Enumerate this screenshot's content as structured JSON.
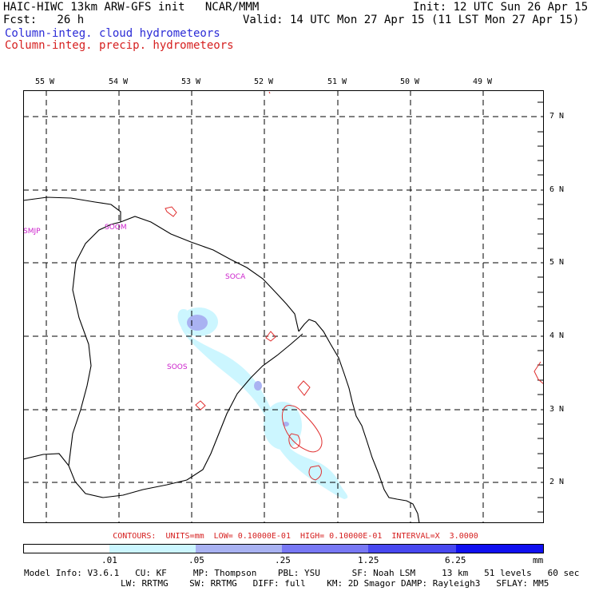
{
  "header": {
    "line1_left": "HAIC-HIWC 13km ARW-GFS init   NCAR/MMM",
    "line1_right": "Init: 12 UTC Sun 26 Apr 15",
    "line2_left": "Fcst:   26 h",
    "line2_right": "Valid: 14 UTC Mon 27 Apr 15 (11 LST Mon 27 Apr 15)",
    "legend_cloud": "Column-integ. cloud hydrometeors",
    "legend_precip": "Column-integ. precip. hydrometeors"
  },
  "colors": {
    "cloud_label": "#2b2bd6",
    "precip_label": "#d62020",
    "precip_contour": "#e03030",
    "station_label": "#cc22cc",
    "shade_light": "#ccf6ff",
    "shade_mid": "#a9b2f2",
    "shade_strong": "#6b6bff",
    "shade_max": "#1010f0"
  },
  "map": {
    "lon_labels": [
      "55 W",
      "54 W",
      "53 W",
      "52 W",
      "51 W",
      "50 W",
      "49 W"
    ],
    "lat_labels": [
      "7 N",
      "6 N",
      "5 N",
      "4 N",
      "3 N",
      "2 N"
    ],
    "stations": [
      "SMJP",
      "SOOM",
      "SOCA",
      "SOOS"
    ]
  },
  "contour_note": "CONTOURS:  UNITS=mm  LOW= 0.10000E-01  HIGH= 0.10000E-01  INTERVAL=X  3.0000",
  "colorbar": {
    "labels": [
      ".01",
      ".05",
      ".25",
      "1.25",
      "6.25"
    ],
    "unit": "mm"
  },
  "footer": {
    "line1": "Model Info: V3.6.1   CU: KF     MP: Thompson    PBL: YSU      SF: Noah LSM     13 km   51 levels   60 sec",
    "line2": "LW: RRTMG    SW: RRTMG   DIFF: full    KM: 2D Smagor DAMP: Rayleigh3   SFLAY: MM5"
  }
}
